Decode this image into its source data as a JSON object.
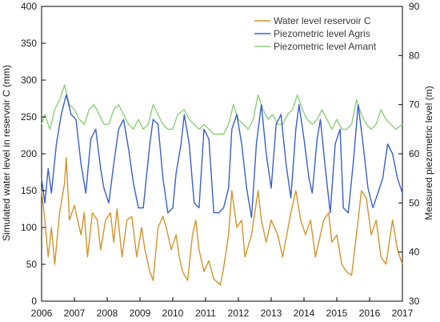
{
  "chart_data": {
    "type": "line",
    "x_range": [
      2006,
      2017
    ],
    "x_ticks": [
      2006,
      2007,
      2008,
      2009,
      2010,
      2011,
      2012,
      2013,
      2014,
      2015,
      2016,
      2017
    ],
    "y_left": {
      "label": "Simulated water level in reservoir C (mm)",
      "range": [
        0,
        400
      ],
      "ticks": [
        0,
        50,
        100,
        150,
        200,
        250,
        300,
        350,
        400
      ]
    },
    "y_right": {
      "label": "Measured piezometric level (m)",
      "range": [
        30,
        90
      ],
      "ticks": [
        30,
        40,
        50,
        60,
        70,
        80,
        90
      ]
    },
    "grid": false,
    "legend_position": "top-right",
    "series": [
      {
        "name": "Water level reservoir C",
        "axis": "left",
        "color": "#d4932a",
        "points": [
          [
            2006.0,
            150
          ],
          [
            2006.1,
            110
          ],
          [
            2006.2,
            60
          ],
          [
            2006.3,
            100
          ],
          [
            2006.4,
            50
          ],
          [
            2006.55,
            120
          ],
          [
            2006.7,
            160
          ],
          [
            2006.75,
            195
          ],
          [
            2006.85,
            110
          ],
          [
            2007.0,
            130
          ],
          [
            2007.1,
            110
          ],
          [
            2007.2,
            90
          ],
          [
            2007.3,
            120
          ],
          [
            2007.4,
            60
          ],
          [
            2007.55,
            120
          ],
          [
            2007.7,
            110
          ],
          [
            2007.8,
            70
          ],
          [
            2007.95,
            110
          ],
          [
            2008.1,
            120
          ],
          [
            2008.2,
            80
          ],
          [
            2008.3,
            125
          ],
          [
            2008.45,
            60
          ],
          [
            2008.6,
            110
          ],
          [
            2008.75,
            115
          ],
          [
            2008.9,
            60
          ],
          [
            2009.05,
            100
          ],
          [
            2009.15,
            70
          ],
          [
            2009.3,
            40
          ],
          [
            2009.4,
            28
          ],
          [
            2009.55,
            100
          ],
          [
            2009.7,
            115
          ],
          [
            2009.8,
            100
          ],
          [
            2009.95,
            70
          ],
          [
            2010.1,
            90
          ],
          [
            2010.2,
            60
          ],
          [
            2010.3,
            40
          ],
          [
            2010.45,
            28
          ],
          [
            2010.6,
            90
          ],
          [
            2010.7,
            110
          ],
          [
            2010.8,
            70
          ],
          [
            2010.95,
            40
          ],
          [
            2011.1,
            55
          ],
          [
            2011.25,
            30
          ],
          [
            2011.45,
            22
          ],
          [
            2011.55,
            45
          ],
          [
            2011.7,
            90
          ],
          [
            2011.8,
            150
          ],
          [
            2011.95,
            100
          ],
          [
            2012.1,
            110
          ],
          [
            2012.2,
            60
          ],
          [
            2012.4,
            90
          ],
          [
            2012.6,
            150
          ],
          [
            2012.7,
            110
          ],
          [
            2012.85,
            80
          ],
          [
            2013.0,
            110
          ],
          [
            2013.2,
            90
          ],
          [
            2013.35,
            60
          ],
          [
            2013.6,
            120
          ],
          [
            2013.75,
            150
          ],
          [
            2013.9,
            110
          ],
          [
            2014.05,
            90
          ],
          [
            2014.2,
            110
          ],
          [
            2014.35,
            60
          ],
          [
            2014.6,
            110
          ],
          [
            2014.75,
            120
          ],
          [
            2014.85,
            80
          ],
          [
            2015.0,
            90
          ],
          [
            2015.15,
            50
          ],
          [
            2015.3,
            40
          ],
          [
            2015.45,
            35
          ],
          [
            2015.65,
            110
          ],
          [
            2015.75,
            150
          ],
          [
            2015.9,
            140
          ],
          [
            2016.05,
            90
          ],
          [
            2016.2,
            110
          ],
          [
            2016.35,
            60
          ],
          [
            2016.5,
            50
          ],
          [
            2016.7,
            110
          ],
          [
            2016.85,
            70
          ],
          [
            2017.0,
            50
          ]
        ]
      },
      {
        "name": "Piezometric level Agris",
        "axis": "right",
        "color": "#3a5fcd",
        "points": [
          [
            2006.0,
            55
          ],
          [
            2006.1,
            50
          ],
          [
            2006.2,
            57
          ],
          [
            2006.3,
            52
          ],
          [
            2006.45,
            62
          ],
          [
            2006.6,
            68
          ],
          [
            2006.75,
            72
          ],
          [
            2006.9,
            68
          ],
          [
            2007.05,
            67
          ],
          [
            2007.2,
            58
          ],
          [
            2007.35,
            52
          ],
          [
            2007.5,
            63
          ],
          [
            2007.65,
            65
          ],
          [
            2007.8,
            57
          ],
          [
            2007.9,
            53
          ],
          [
            2008.05,
            50
          ],
          [
            2008.2,
            58
          ],
          [
            2008.35,
            65
          ],
          [
            2008.5,
            67
          ],
          [
            2008.65,
            61
          ],
          [
            2008.8,
            54
          ],
          [
            2008.95,
            49
          ],
          [
            2009.1,
            49
          ],
          [
            2009.3,
            62
          ],
          [
            2009.4,
            67
          ],
          [
            2009.55,
            66
          ],
          [
            2009.7,
            55
          ],
          [
            2009.85,
            48
          ],
          [
            2010.0,
            49
          ],
          [
            2010.1,
            56
          ],
          [
            2010.25,
            62
          ],
          [
            2010.35,
            68
          ],
          [
            2010.5,
            62
          ],
          [
            2010.65,
            50
          ],
          [
            2010.8,
            49
          ],
          [
            2010.95,
            65
          ],
          [
            2011.1,
            63
          ],
          [
            2011.25,
            48
          ],
          [
            2011.4,
            48
          ],
          [
            2011.55,
            49
          ],
          [
            2011.7,
            53
          ],
          [
            2011.8,
            65
          ],
          [
            2011.95,
            68
          ],
          [
            2012.1,
            62
          ],
          [
            2012.25,
            53
          ],
          [
            2012.4,
            47
          ],
          [
            2012.55,
            62
          ],
          [
            2012.7,
            70
          ],
          [
            2012.85,
            60
          ],
          [
            2013.0,
            53
          ],
          [
            2013.15,
            66
          ],
          [
            2013.3,
            68
          ],
          [
            2013.45,
            58
          ],
          [
            2013.6,
            51
          ],
          [
            2013.75,
            65
          ],
          [
            2013.85,
            70
          ],
          [
            2014.0,
            63
          ],
          [
            2014.15,
            55
          ],
          [
            2014.25,
            52
          ],
          [
            2014.4,
            63
          ],
          [
            2014.5,
            67
          ],
          [
            2014.65,
            57
          ],
          [
            2014.8,
            48
          ],
          [
            2014.95,
            62
          ],
          [
            2015.1,
            65
          ],
          [
            2015.2,
            49
          ],
          [
            2015.35,
            48
          ],
          [
            2015.5,
            58
          ],
          [
            2015.65,
            70
          ],
          [
            2015.8,
            62
          ],
          [
            2015.95,
            53
          ],
          [
            2016.1,
            49
          ],
          [
            2016.25,
            52
          ],
          [
            2016.4,
            55
          ],
          [
            2016.55,
            62
          ],
          [
            2016.7,
            60
          ],
          [
            2016.85,
            55
          ],
          [
            2017.0,
            52
          ]
        ]
      },
      {
        "name": "Piezometric level Amant",
        "axis": "right",
        "color": "#8ccf78",
        "points": [
          [
            2006.0,
            66
          ],
          [
            2006.1,
            68
          ],
          [
            2006.25,
            65
          ],
          [
            2006.4,
            69
          ],
          [
            2006.55,
            71
          ],
          [
            2006.7,
            74
          ],
          [
            2006.85,
            70
          ],
          [
            2007.0,
            69
          ],
          [
            2007.15,
            67
          ],
          [
            2007.3,
            66
          ],
          [
            2007.45,
            69
          ],
          [
            2007.6,
            70
          ],
          [
            2007.75,
            68
          ],
          [
            2007.9,
            66
          ],
          [
            2008.05,
            66
          ],
          [
            2008.2,
            69
          ],
          [
            2008.35,
            70
          ],
          [
            2008.5,
            68
          ],
          [
            2008.65,
            66
          ],
          [
            2008.8,
            65
          ],
          [
            2008.95,
            67
          ],
          [
            2009.1,
            65
          ],
          [
            2009.25,
            66
          ],
          [
            2009.4,
            70
          ],
          [
            2009.55,
            68
          ],
          [
            2009.7,
            66
          ],
          [
            2009.85,
            65
          ],
          [
            2010.0,
            65
          ],
          [
            2010.15,
            68
          ],
          [
            2010.35,
            69
          ],
          [
            2010.5,
            67
          ],
          [
            2010.65,
            66
          ],
          [
            2010.8,
            65
          ],
          [
            2010.95,
            66
          ],
          [
            2011.1,
            65
          ],
          [
            2011.25,
            64
          ],
          [
            2011.4,
            64
          ],
          [
            2011.55,
            64
          ],
          [
            2011.7,
            66
          ],
          [
            2011.85,
            70
          ],
          [
            2012.0,
            67
          ],
          [
            2012.15,
            66
          ],
          [
            2012.3,
            65
          ],
          [
            2012.45,
            67
          ],
          [
            2012.6,
            72
          ],
          [
            2012.75,
            69
          ],
          [
            2012.9,
            67
          ],
          [
            2013.05,
            68
          ],
          [
            2013.2,
            66
          ],
          [
            2013.35,
            66
          ],
          [
            2013.5,
            68
          ],
          [
            2013.65,
            69
          ],
          [
            2013.8,
            72
          ],
          [
            2013.95,
            69
          ],
          [
            2014.1,
            67
          ],
          [
            2014.25,
            66
          ],
          [
            2014.4,
            67
          ],
          [
            2014.55,
            69
          ],
          [
            2014.7,
            67
          ],
          [
            2014.85,
            65
          ],
          [
            2015.0,
            67
          ],
          [
            2015.15,
            65
          ],
          [
            2015.3,
            65
          ],
          [
            2015.45,
            66
          ],
          [
            2015.6,
            71
          ],
          [
            2015.75,
            68
          ],
          [
            2015.9,
            66
          ],
          [
            2016.05,
            65
          ],
          [
            2016.2,
            66
          ],
          [
            2016.35,
            69
          ],
          [
            2016.5,
            67
          ],
          [
            2016.65,
            66
          ],
          [
            2016.8,
            65
          ],
          [
            2017.0,
            66
          ]
        ]
      }
    ]
  }
}
